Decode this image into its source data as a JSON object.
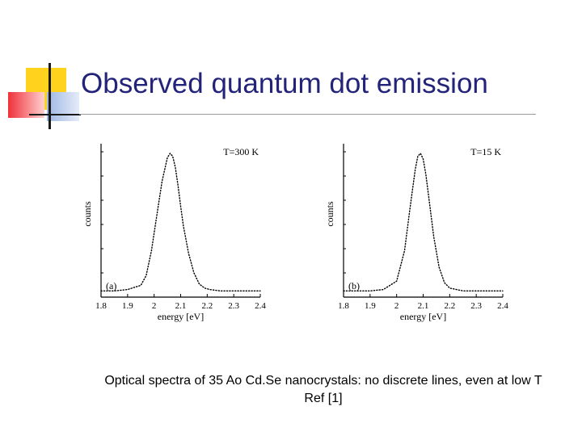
{
  "slide": {
    "title": "Observed quantum dot emission",
    "caption_line1": "Optical spectra of 35 Ao Cd.Se nanocrystals: no discrete lines, even at low T",
    "caption_line2": "Ref [1]"
  },
  "colors": {
    "title": "#23237a",
    "accent_yellow": "#ffd21e",
    "accent_red": "#f0303a",
    "accent_blue": "#b8c8ea"
  },
  "chart_data": [
    {
      "type": "line",
      "panel_label": "(a)",
      "annotation": "T=300 K",
      "xlabel": "energy [eV]",
      "ylabel": "counts",
      "xlim": [
        1.8,
        2.4
      ],
      "xticks": [
        "1.8",
        "1.9",
        "2",
        "2.1",
        "2.2",
        "2.3",
        "2.4"
      ],
      "series": [
        {
          "style": "dotted",
          "x": [
            1.8,
            1.85,
            1.9,
            1.95,
            1.97,
            1.99,
            2.01,
            2.03,
            2.05,
            2.06,
            2.07,
            2.08,
            2.09,
            2.1,
            2.11,
            2.13,
            2.15,
            2.17,
            2.19,
            2.21,
            2.25,
            2.3,
            2.4
          ],
          "y": [
            0.01,
            0.01,
            0.02,
            0.05,
            0.12,
            0.3,
            0.55,
            0.8,
            0.97,
            1.0,
            0.98,
            0.9,
            0.77,
            0.62,
            0.48,
            0.28,
            0.14,
            0.06,
            0.03,
            0.02,
            0.01,
            0.01,
            0.01
          ]
        }
      ]
    },
    {
      "type": "line",
      "panel_label": "(b)",
      "annotation": "T=15 K",
      "xlabel": "energy [eV]",
      "ylabel": "counts",
      "xlim": [
        1.8,
        2.4
      ],
      "xticks": [
        "1.8",
        "1.9",
        "2",
        "2.1",
        "2.2",
        "2.3",
        "2.4"
      ],
      "series": [
        {
          "style": "dotted",
          "x": [
            1.8,
            1.9,
            1.95,
            2.0,
            2.03,
            2.05,
            2.07,
            2.08,
            2.09,
            2.1,
            2.11,
            2.12,
            2.14,
            2.16,
            2.18,
            2.2,
            2.25,
            2.3,
            2.4
          ],
          "y": [
            0.01,
            0.01,
            0.02,
            0.08,
            0.3,
            0.6,
            0.88,
            0.98,
            1.0,
            0.96,
            0.85,
            0.7,
            0.4,
            0.18,
            0.07,
            0.03,
            0.01,
            0.01,
            0.01
          ]
        }
      ]
    }
  ]
}
